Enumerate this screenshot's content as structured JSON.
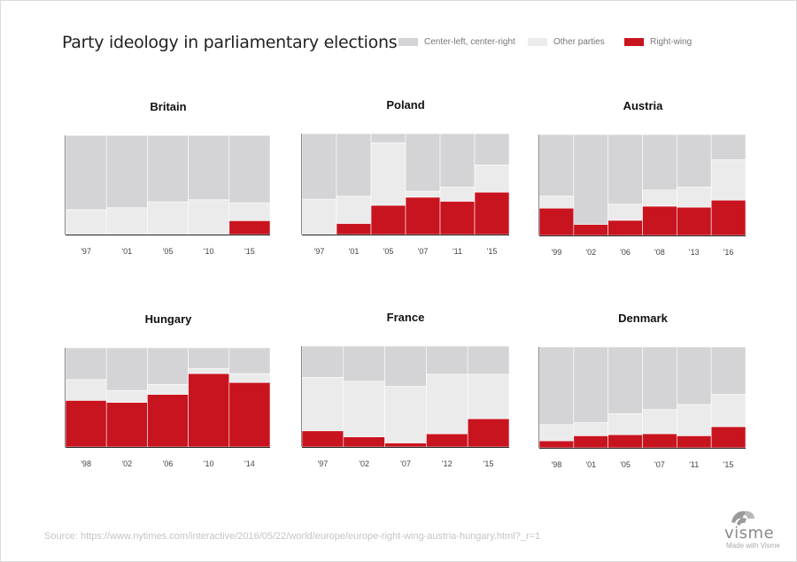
{
  "title": "Party ideology in parliamentary elections",
  "legend": [
    {
      "label": "Center-left, center-right",
      "color": "#d4d4d6"
    },
    {
      "label": "Other parties",
      "color": "#ebebeb"
    },
    {
      "label": "Right-wing",
      "color": "#c8141f"
    }
  ],
  "source": "Source: https://www.nytimes.com/interactive/2016/05/22/world/europe/europe-right-wing-austria-hungary.html?_r=1",
  "brand": {
    "name": "visme",
    "tagline": "Made with Visme"
  },
  "colors": {
    "mainstream": "#d4d4d6",
    "other": "#ebebeb",
    "other_light": "#f7f7f7",
    "right": "#c8141f"
  },
  "chart_data": [
    {
      "type": "bar",
      "title": "Britain",
      "categories": [
        "'97",
        "'01",
        "'05",
        "'10",
        "'15"
      ],
      "series": [
        {
          "name": "Right-wing",
          "values": [
            0,
            0,
            0,
            0,
            14
          ]
        },
        {
          "name": "Other parties",
          "values": [
            25,
            27,
            33,
            35,
            18
          ]
        },
        {
          "name": "Center-left, center-right",
          "values": [
            75,
            73,
            67,
            65,
            68
          ]
        }
      ]
    },
    {
      "type": "bar",
      "title": "Poland",
      "categories": [
        "'97",
        "'01",
        "'05",
        "'07",
        "'11",
        "'15"
      ],
      "series": [
        {
          "name": "Right-wing",
          "values": [
            0,
            11,
            29,
            37,
            33,
            42
          ]
        },
        {
          "name": "Other parties",
          "values": [
            35,
            27,
            62,
            6,
            14,
            27
          ]
        },
        {
          "name": "Center-left, center-right",
          "values": [
            65,
            62,
            9,
            57,
            53,
            31
          ]
        }
      ]
    },
    {
      "type": "bar",
      "title": "Austria",
      "categories": [
        "'99",
        "'02",
        "'06",
        "'08",
        "'13",
        "'16"
      ],
      "series": [
        {
          "name": "Right-wing",
          "values": [
            27,
            11,
            15,
            29,
            28,
            35
          ]
        },
        {
          "name": "Other parties",
          "values": [
            12,
            0,
            16,
            16,
            20,
            40
          ]
        },
        {
          "name": "Center-left, center-right",
          "values": [
            61,
            89,
            69,
            55,
            52,
            25
          ]
        }
      ]
    },
    {
      "type": "bar",
      "title": "Hungary",
      "categories": [
        "'98",
        "'02",
        "'06",
        "'10",
        "'14"
      ],
      "series": [
        {
          "name": "Right-wing",
          "values": [
            47,
            45,
            53,
            74,
            65
          ]
        },
        {
          "name": "Other parties",
          "values": [
            21,
            12,
            10,
            5,
            9
          ]
        },
        {
          "name": "Center-left, center-right",
          "values": [
            32,
            43,
            37,
            21,
            26
          ]
        }
      ]
    },
    {
      "type": "bar",
      "title": "France",
      "categories": [
        "'97",
        "'02",
        "'07",
        "'12",
        "'15"
      ],
      "series": [
        {
          "name": "Right-wing",
          "values": [
            16,
            10,
            4,
            13,
            28
          ]
        },
        {
          "name": "Other parties",
          "values": [
            53,
            55,
            56,
            59,
            44
          ]
        },
        {
          "name": "Center-left, center-right",
          "values": [
            31,
            35,
            40,
            28,
            28
          ]
        }
      ]
    },
    {
      "type": "bar",
      "title": "Denmark",
      "categories": [
        "'98",
        "'01",
        "'05",
        "'07",
        "'11",
        "'15"
      ],
      "series": [
        {
          "name": "Right-wing",
          "values": [
            7,
            12,
            13,
            14,
            12,
            21
          ]
        },
        {
          "name": "Other parties",
          "values": [
            16,
            13,
            21,
            24,
            31,
            32
          ]
        },
        {
          "name": "Center-left, center-right",
          "values": [
            77,
            75,
            66,
            62,
            57,
            47
          ]
        }
      ]
    }
  ]
}
